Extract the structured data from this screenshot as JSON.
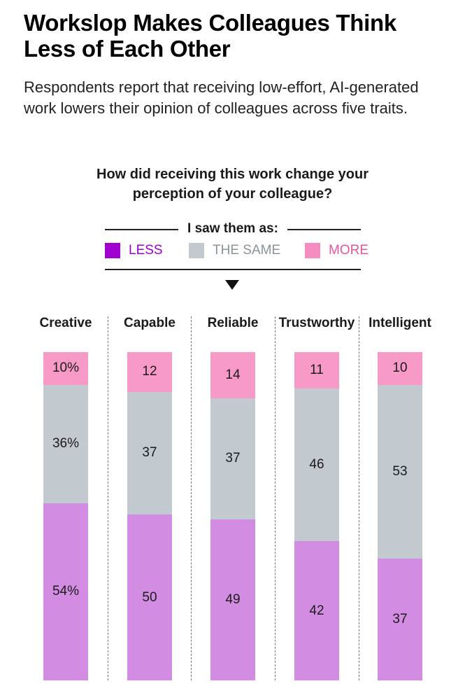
{
  "header": {
    "title": "Workslop Makes Colleagues Think Less of Each Other",
    "subtitle": "Respondents report that receiving low-effort, AI-generated work lowers their opinion of colleagues across five traits."
  },
  "question": "How did receiving this work change your perception of your colleague?",
  "legend": {
    "heading": "I saw them as:",
    "items": [
      {
        "label": "LESS",
        "color": "#a100d0"
      },
      {
        "label": "THE SAME",
        "color": "#c2c9cf"
      },
      {
        "label": "MORE",
        "color": "#f58cbf"
      }
    ]
  },
  "chart_data": {
    "type": "bar",
    "stacked": true,
    "unit": "%",
    "categories": [
      "Creative",
      "Capable",
      "Reliable",
      "Trustworthy",
      "Intelligent"
    ],
    "series": [
      {
        "name": "LESS",
        "color": "#d28de3",
        "values": [
          54,
          50,
          49,
          42,
          37
        ],
        "labels": [
          "54%",
          "50",
          "49",
          "42",
          "37"
        ]
      },
      {
        "name": "THE SAME",
        "color": "#c2c9cf",
        "values": [
          36,
          37,
          37,
          46,
          53
        ],
        "labels": [
          "36%",
          "37",
          "37",
          "46",
          "53"
        ]
      },
      {
        "name": "MORE",
        "color": "#f89ac8",
        "values": [
          10,
          12,
          14,
          11,
          10
        ],
        "labels": [
          "10%",
          "12",
          "14",
          "11",
          "10"
        ]
      }
    ],
    "ylim": [
      0,
      100
    ]
  }
}
